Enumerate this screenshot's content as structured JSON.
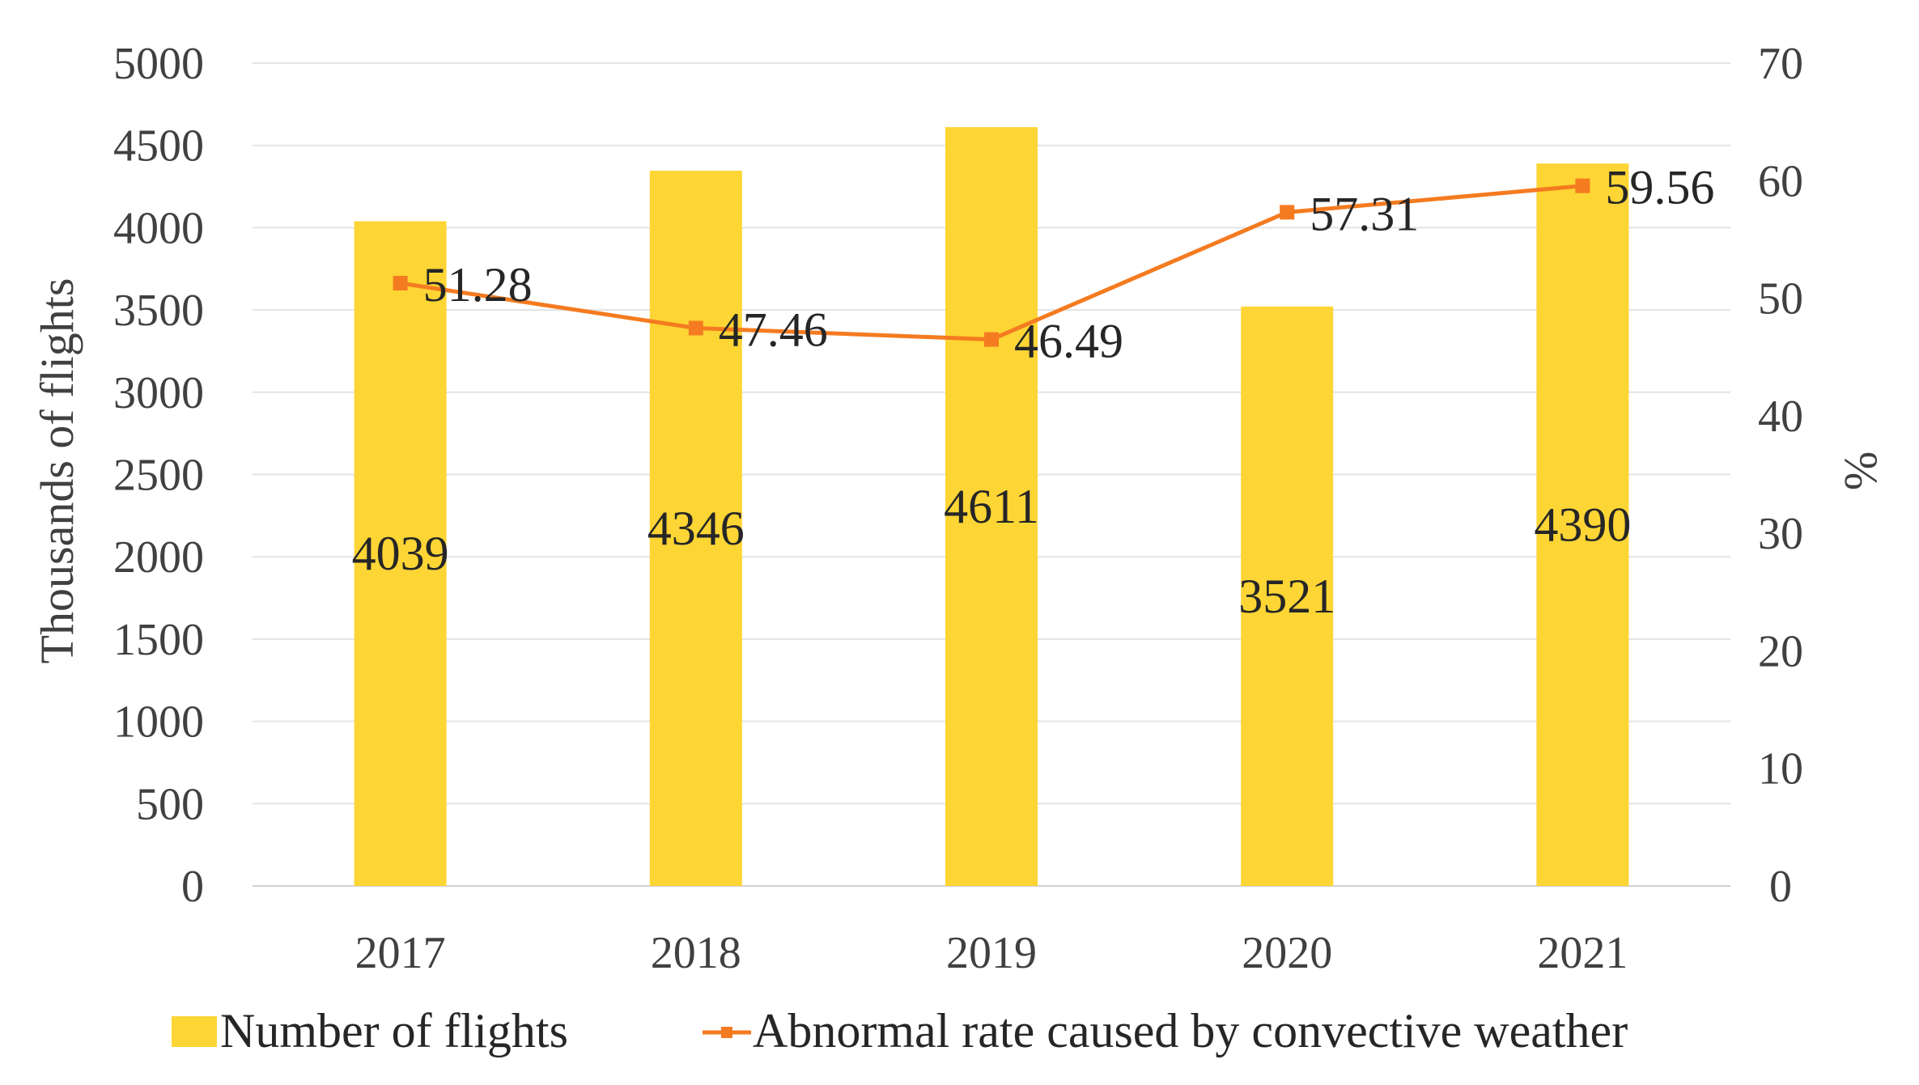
{
  "chart_data": {
    "type": "bar",
    "categories": [
      "2017",
      "2018",
      "2019",
      "2020",
      "2021"
    ],
    "series": [
      {
        "name": "Number of flights",
        "type": "bar",
        "axis": "left",
        "values": [
          4039,
          4346,
          4611,
          3521,
          4390
        ],
        "color": "#FDD535"
      },
      {
        "name": "Abnormal rate caused by convective weather",
        "type": "line",
        "axis": "right",
        "values": [
          51.28,
          47.46,
          46.49,
          57.31,
          59.56
        ],
        "color": "#F47B20"
      }
    ],
    "ylabel_left": "Thousands of flights",
    "ylabel_right": "%",
    "ylim_left": [
      0,
      5000
    ],
    "yticks_left": [
      "0",
      "500",
      "1000",
      "1500",
      "2000",
      "2500",
      "3000",
      "3500",
      "4000",
      "4500",
      "5000"
    ],
    "ylim_right": [
      0,
      70
    ],
    "yticks_right": [
      "0",
      "10",
      "20",
      "30",
      "40",
      "50",
      "60",
      "70"
    ],
    "bar_labels": [
      "4039",
      "4346",
      "4611",
      "3521",
      "4390"
    ],
    "line_labels": [
      "51.28",
      "47.46",
      "46.49",
      "57.31",
      "59.56"
    ],
    "grid": true,
    "legend_position": "bottom"
  }
}
